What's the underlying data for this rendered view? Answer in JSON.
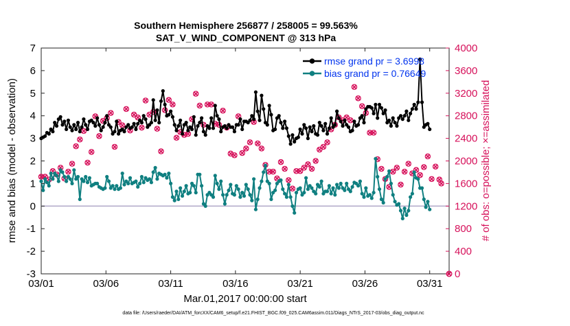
{
  "chart_data": {
    "type": "line",
    "title_line1": "Southern Hemisphere 256877 / 258005 = 99.563%",
    "title_line2": "SAT_V_WIND_COMPONENT @ 313 hPa",
    "xlabel": "Mar.01,2017 00:00:00 start",
    "ylabel_left": "rmse and bias (model - observation)",
    "ylabel_right": "# of obs: o=possible; ×=assimilated",
    "footer": "data file: /Users/raeder/DAI/ATM_forcXX/CAM6_setup/f.e21.FHIST_BGC.f09_025.CAM6assim.011/Diags_NTrS_2017-03/obs_diag_output.nc",
    "x_ticks": [
      "03/01",
      "03/06",
      "03/11",
      "03/16",
      "03/21",
      "03/26",
      "03/31"
    ],
    "x_tick_days": [
      0,
      5,
      10,
      15,
      20,
      25,
      30
    ],
    "xlim_days": [
      0,
      31.5
    ],
    "y_left_ticks": [
      "-3",
      "-2",
      "-1",
      "0",
      "1",
      "2",
      "3",
      "4",
      "5",
      "6",
      "7"
    ],
    "ylim_left": [
      -3,
      7
    ],
    "y_right_ticks": [
      "0",
      "400",
      "800",
      "1200",
      "1600",
      "2000",
      "2400",
      "2800",
      "3200",
      "3600",
      "4000"
    ],
    "ylim_right": [
      0,
      4000
    ],
    "legend": {
      "rmse_label": "rmse grand pr = 3.6998",
      "bias_label": "bias grand pr = 0.76649",
      "placement": "top-right"
    },
    "colors": {
      "rmse": "#000000",
      "bias": "#0f7f80",
      "obs": "#d6105a",
      "legend_text": "#0033ee",
      "zero_line": "#b0a8c8"
    },
    "series": [
      {
        "name": "rmse grand pr = 3.6998",
        "values": [
          3.0,
          3.05,
          3.1,
          3.25,
          3.2,
          3.4,
          3.3,
          3.7,
          3.55,
          3.85,
          3.95,
          3.6,
          3.75,
          3.4,
          3.8,
          3.5,
          3.35,
          3.6,
          3.4,
          3.7,
          3.3,
          3.5,
          3.85,
          3.6,
          3.4,
          3.75,
          3.8,
          3.7,
          3.55,
          3.9,
          3.6,
          3.35,
          3.5,
          3.7,
          4.0,
          3.6,
          3.5,
          3.2,
          3.3,
          3.75,
          3.2,
          3.35,
          3.4,
          3.3,
          3.5,
          3.6,
          3.45,
          3.5,
          3.65,
          3.4,
          3.65,
          3.8,
          3.7,
          4.0,
          3.85,
          3.5,
          3.6,
          3.7,
          4.7,
          3.8,
          4.25,
          3.7,
          4.65,
          5.1,
          4.5,
          4.0,
          4.05,
          4.2,
          3.95,
          3.6,
          3.35,
          3.55,
          3.8,
          3.2,
          3.6,
          3.7,
          3.35,
          3.5,
          3.4,
          3.95,
          3.15,
          3.55,
          3.7,
          3.9,
          3.3,
          3.15,
          3.55,
          3.45,
          3.9,
          3.45,
          4.45,
          4.0,
          3.85,
          3.3,
          3.5,
          3.55,
          3.45,
          3.6,
          3.5,
          3.5,
          3.3,
          3.6,
          3.6,
          3.85,
          3.4,
          3.75,
          3.75,
          3.7,
          3.8,
          4.0,
          3.85,
          5.05,
          4.2,
          3.8,
          4.9,
          4.3,
          3.7,
          3.6,
          4.45,
          4.05,
          3.35,
          3.4,
          3.9,
          4.0,
          3.7,
          3.45,
          3.75,
          3.45,
          3.1,
          2.75,
          3.15,
          2.85,
          3.0,
          3.05,
          3.4,
          3.2,
          3.6,
          3.45,
          3.0,
          3.5,
          3.3,
          3.55,
          3.2,
          3.15,
          3.7,
          3.55,
          3.35,
          3.65,
          3.2,
          3.45,
          3.9,
          3.5,
          3.6,
          4.2,
          3.9,
          3.75,
          3.55,
          3.8,
          3.6,
          3.5,
          3.3,
          3.35,
          3.75,
          3.55,
          3.6,
          3.9,
          4.0,
          3.7,
          4.3,
          4.4,
          4.4,
          4.35,
          4.1,
          4.5,
          3.9,
          4.5,
          4.35,
          4.1,
          4.25,
          3.7,
          3.8,
          3.55,
          3.9,
          3.7,
          3.55,
          3.9,
          4.0,
          3.85,
          4.0,
          4.2,
          3.8,
          4.1,
          4.3,
          4.5,
          4.3,
          4.6,
          6.5,
          4.6,
          3.5,
          3.6,
          3.65,
          3.4
        ],
        "role": "rmse"
      },
      {
        "name": "bias grand pr = 0.76649",
        "values": [
          1.1,
          0.7,
          1.2,
          1.05,
          0.9,
          1.45,
          1.2,
          1.45,
          1.35,
          1.1,
          1.6,
          1.5,
          1.3,
          1.1,
          1.3,
          1.2,
          1.0,
          1.6,
          1.2,
          1.3,
          0.3,
          1.2,
          1.1,
          1.3,
          1.05,
          1.25,
          0.9,
          0.95,
          1.0,
          1.0,
          0.85,
          0.8,
          0.75,
          0.8,
          1.3,
          1.1,
          0.8,
          0.9,
          0.75,
          0.9,
          0.75,
          0.8,
          1.45,
          0.95,
          1.1,
          1.0,
          1.25,
          1.0,
          1.05,
          1.1,
          0.85,
          1.0,
          1.3,
          1.05,
          1.25,
          1.15,
          1.2,
          1.05,
          1.5,
          1.7,
          1.2,
          1.45,
          1.4,
          1.35,
          1.4,
          1.25,
          1.45,
          1.0,
          0.4,
          0.25,
          0.65,
          0.3,
          0.8,
          0.45,
          0.65,
          0.9,
          0.55,
          0.6,
          1.0,
          0.9,
          0.6,
          1.4,
          1.4,
          0.9,
          0.1,
          0.0,
          0.5,
          0.6,
          0.5,
          0.4,
          1.35,
          1.0,
          0.75,
          1.1,
          0.5,
          0.1,
          0.5,
          0.7,
          0.95,
          0.55,
          0.5,
          0.9,
          0.75,
          0.4,
          0.6,
          0.45,
          0.95,
          0.75,
          0.5,
          0.25,
          1.2,
          -0.15,
          0.3,
          0.8,
          1.1,
          1.5,
          1.8,
          1.1,
          1.0,
          0.3,
          0.6,
          0.7,
          1.0,
          1.1,
          1.15,
          0.75,
          0.55,
          0.4,
          0.95,
          0.4,
          0.0,
          -0.3,
          0.6,
          0.75,
          0.8,
          0.5,
          0.6,
          1.25,
          0.75,
          0.9,
          0.8,
          0.65,
          0.55,
          0.95,
          0.85,
          1.1,
          0.55,
          0.65,
          0.65,
          0.9,
          0.55,
          0.8,
          0.5,
          0.95,
          0.8,
          1.0,
          0.8,
          0.7,
          1.0,
          0.75,
          0.65,
          0.85,
          1.05,
          1.0,
          0.9,
          1.1,
          0.55,
          0.4,
          0.8,
          0.45,
          0.5,
          0.35,
          0.6,
          2.1,
          1.3,
          0.75,
          0.3,
          0.15,
          1.2,
          1.3,
          1.55,
          1.0,
          0.5,
          0.2,
          0.05,
          0.1,
          -0.2,
          -0.55,
          -0.1,
          -0.4,
          -0.2,
          0.4,
          0.55,
          1.5,
          1.25,
          1.2,
          0.8,
          0.8,
          0.3,
          -0.05,
          0.2,
          -0.15
        ],
        "role": "bias"
      }
    ],
    "obs_possible": {
      "name": "possible",
      "values": [
        1720,
        1740,
        1720,
        1500,
        1670,
        1840,
        1820,
        2000,
        1760,
        1700,
        1880,
        1780,
        1690,
        1730,
        1810,
        1620,
        1950,
        2090,
        2260,
        2360,
        2380,
        2300,
        2530,
        2130,
        1970,
        2300,
        2160,
        2530,
        2790,
        2610,
        2440,
        2540,
        2710,
        2490,
        2760,
        2430,
        2850,
        2640,
        2250,
        2400,
        2690,
        2830,
        2630,
        2500,
        2920,
        2630,
        2540,
        2760,
        2820,
        2540,
        2770,
        2940,
        2590,
        2740,
        3070,
        2640,
        2820,
        2790,
        2870,
        2650,
        2570,
        2160,
        2170,
        2550,
        2900,
        3240,
        3080,
        2940,
        3000,
        2770,
        2410,
        2520,
        2510,
        2430,
        2460,
        2180,
        2480,
        2780,
        2740,
        2810,
        3190,
        2760,
        2980,
        2730,
        2640,
        3400,
        3000,
        3150,
        3000,
        2840,
        2660,
        2750,
        2640,
        3080,
        2890,
        2270,
        2590,
        2470,
        2130,
        2440,
        2100,
        2670,
        2790,
        2420,
        2140,
        2320,
        2220,
        2640,
        2330,
        2700,
        2690,
        2580,
        2310,
        1970,
        2220,
        1840,
        1930,
        1700,
        1810,
        1890,
        1810,
        1620,
        1690,
        1550,
        1980,
        1710,
        1860,
        1720,
        1660,
        1720,
        1510,
        1920,
        1820,
        1630,
        1820,
        1830,
        1880,
        1920,
        1940,
        1950,
        1860,
        1940,
        2000,
        2080,
        2200,
        2050,
        2250,
        2180,
        2330,
        2420,
        2560,
        2570,
        2640,
        2800,
        2770,
        2880,
        2720,
        2630,
        2770,
        2600,
        2720,
        3170,
        3310,
        2850,
        3110,
        2900,
        2970,
        2720,
        2850,
        2760,
        2500,
        2980,
        2500,
        1990,
        2030,
        2180,
        1860,
        1690,
        1680,
        1640,
        1540,
        1580,
        1810,
        1760,
        1880,
        1520,
        1580,
        1500,
        1810,
        1680,
        1950,
        1900,
        1780,
        1670,
        1840,
        1800,
        1750,
        1700,
        1890,
        1680,
        2080,
        2020,
        1680,
        1580,
        1900,
        1760,
        1670,
        1600
      ]
    },
    "obs_assimilated": {
      "name": "assimilated",
      "values": [
        1720,
        1740,
        1720,
        1500,
        1670,
        1840,
        1820,
        2000,
        1760,
        1700,
        1880,
        1780,
        1690,
        1730,
        1810,
        1620,
        1950,
        2090,
        2260,
        2360,
        2380,
        2300,
        2530,
        2130,
        1970,
        2300,
        2160,
        2530,
        2790,
        2610,
        2440,
        2540,
        2710,
        2490,
        2760,
        2430,
        2850,
        2640,
        2250,
        2400,
        2690,
        2830,
        2630,
        2500,
        2920,
        2630,
        2540,
        2760,
        2820,
        2540,
        2770,
        2940,
        2590,
        2740,
        3070,
        2640,
        2820,
        2790,
        2870,
        2650,
        2570,
        2160,
        2170,
        2550,
        2900,
        3240,
        3080,
        2940,
        3000,
        2770,
        2410,
        2520,
        2510,
        2430,
        2460,
        2180,
        2480,
        2780,
        2740,
        2810,
        3190,
        2760,
        2980,
        2730,
        2640,
        3400,
        3000,
        3150,
        3000,
        2840,
        2660,
        2750,
        2640,
        3080,
        2890,
        2270,
        2590,
        2470,
        2130,
        2440,
        2100,
        2670,
        2790,
        2420,
        2140,
        2320,
        2220,
        2640,
        2330,
        2700,
        2690,
        2580,
        2310,
        1970,
        2220,
        1840,
        1930,
        1700,
        1810,
        1890,
        1810,
        1620,
        1690,
        1550,
        1980,
        1710,
        1860,
        1720,
        1660,
        1720,
        1510,
        1920,
        1820,
        1630,
        1820,
        1830,
        1880,
        1920,
        1940,
        1950,
        1860,
        1940,
        2000,
        2080,
        2200,
        2050,
        2250,
        2180,
        2330,
        2420,
        2560,
        2570,
        2640,
        2800,
        2770,
        2880,
        2720,
        2630,
        2770,
        2600,
        2720,
        3170,
        3310,
        2850,
        3110,
        2900,
        2970,
        2720,
        2850,
        2760,
        2500,
        2980,
        2500,
        1990,
        2030,
        2180,
        1860,
        1690,
        1680,
        1640,
        1540,
        1580,
        1810,
        1760,
        1880,
        1520,
        1580,
        1500,
        1810,
        1680,
        1950,
        1900,
        1780,
        1670,
        1840,
        1800,
        1750,
        1700,
        1890,
        1680,
        2080,
        2020,
        1680,
        1580,
        1900,
        1760,
        1670,
        1600
      ]
    }
  }
}
